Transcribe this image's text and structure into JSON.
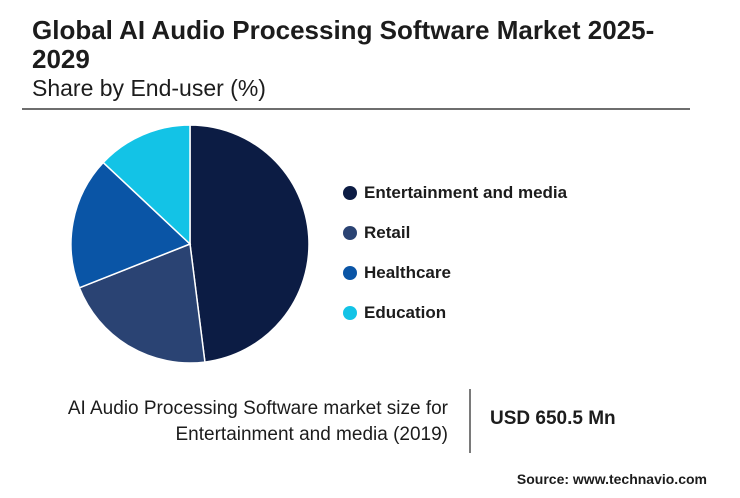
{
  "header": {
    "title": "Global AI Audio Processing Software Market 2025-2029",
    "subtitle": "Share by End-user (%)"
  },
  "chart_data": {
    "type": "pie",
    "categories": [
      "Entertainment and media",
      "Retail",
      "Healthcare",
      "Education"
    ],
    "values": [
      48,
      21,
      18,
      13
    ],
    "colors": [
      "#0c1c44",
      "#2a4373",
      "#0a55a6",
      "#13c3e6"
    ],
    "legend_position": "right",
    "title": "Global AI Audio Processing Software Market 2025-2029",
    "subtitle": "Share by End-user (%)"
  },
  "footer": {
    "description_line1": "AI Audio Processing Software market size for",
    "description_line2": "Entertainment and media (2019)",
    "market_value": "USD 650.5 Mn",
    "source": "Source: www.technavio.com"
  }
}
